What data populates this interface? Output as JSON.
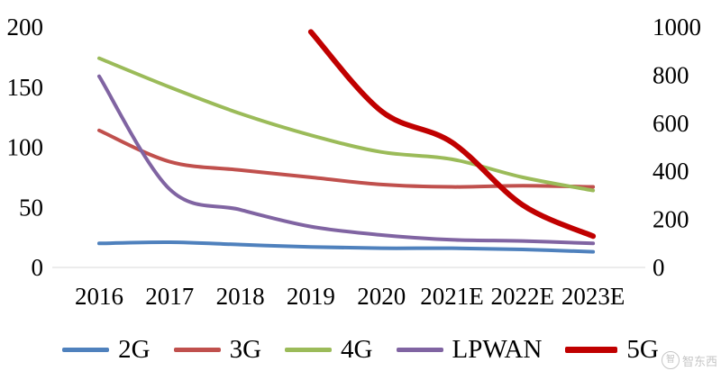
{
  "chart_data": {
    "type": "line",
    "title": "",
    "xlabel": "",
    "ylabel_left": "",
    "ylabel_right": "",
    "x": [
      "2016",
      "2017",
      "2018",
      "2019",
      "2020",
      "2021E",
      "2022E",
      "2023E"
    ],
    "series": [
      {
        "name": "2G",
        "axis": "left",
        "color": "#4f81bd",
        "width": 4,
        "values": [
          20,
          21,
          19,
          17,
          16,
          16,
          15,
          13
        ]
      },
      {
        "name": "3G",
        "axis": "left",
        "color": "#c0504d",
        "width": 4,
        "values": [
          114,
          88,
          81,
          75,
          69,
          67,
          68,
          67
        ]
      },
      {
        "name": "4G",
        "axis": "left",
        "color": "#9bbb59",
        "width": 4,
        "values": [
          174,
          150,
          128,
          110,
          96,
          90,
          75,
          64
        ]
      },
      {
        "name": "LPWAN",
        "axis": "left",
        "color": "#8064a2",
        "width": 4,
        "values": [
          159,
          65,
          48,
          34,
          27,
          23,
          22,
          20
        ]
      },
      {
        "name": "5G",
        "axis": "right",
        "color": "#c00000",
        "width": 6,
        "values": [
          null,
          null,
          null,
          980,
          650,
          520,
          260,
          130
        ]
      }
    ],
    "left_axis": {
      "min": 0,
      "max": 200,
      "ticks": [
        0,
        50,
        100,
        150,
        200
      ]
    },
    "right_axis": {
      "min": 0,
      "max": 1000,
      "ticks": [
        0,
        200,
        400,
        600,
        800,
        1000
      ]
    },
    "grid": false,
    "legend_position": "bottom",
    "axis_text_color": "#000000",
    "baseline_color": "#d9d9d9"
  },
  "watermark": {
    "icon_char": "智",
    "text": "智东西"
  }
}
